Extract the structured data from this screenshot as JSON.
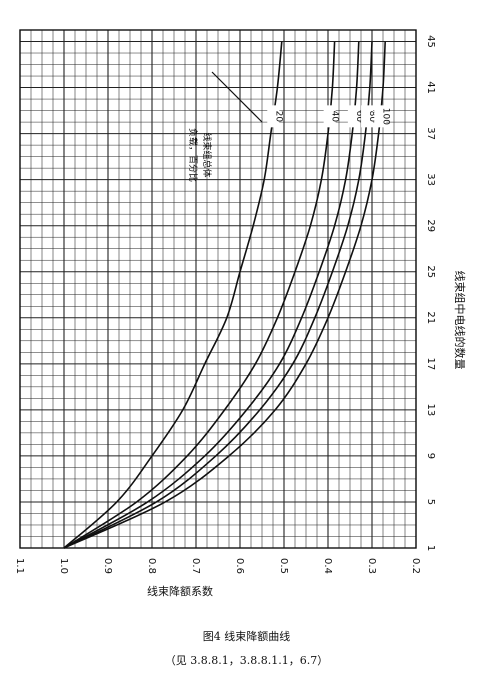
{
  "chart_data": {
    "type": "line",
    "x_axis": {
      "title": "线束组中电线的数量",
      "ticks": [
        1,
        5,
        9,
        13,
        17,
        21,
        25,
        29,
        33,
        37,
        41,
        45
      ],
      "range": [
        1,
        46
      ]
    },
    "y_axis": {
      "title": "线束降额系数",
      "ticks": [
        "1.1",
        "1.0",
        "0.9",
        "0.8",
        "0.7",
        "0.6",
        "0.5",
        "0.4",
        "0.3",
        "0.2"
      ],
      "range": [
        0.2,
        1.1
      ]
    },
    "grid": true,
    "series_group_label": "线束组总体负载，百分比",
    "series": [
      {
        "name": "20",
        "x": [
          1,
          5,
          9,
          13,
          17,
          21,
          25,
          29,
          33,
          37,
          41,
          45
        ],
        "y": [
          1.0,
          0.88,
          0.8,
          0.73,
          0.68,
          0.63,
          0.6,
          0.57,
          0.545,
          0.53,
          0.515,
          0.505
        ]
      },
      {
        "name": "40",
        "x": [
          1,
          5,
          9,
          13,
          17,
          21,
          25,
          29,
          33,
          37,
          41,
          45
        ],
        "y": [
          1.0,
          0.835,
          0.72,
          0.635,
          0.565,
          0.515,
          0.475,
          0.44,
          0.415,
          0.4,
          0.39,
          0.385
        ]
      },
      {
        "name": "60",
        "x": [
          1,
          5,
          9,
          13,
          17,
          21,
          25,
          29,
          33,
          37,
          41,
          45
        ],
        "y": [
          1.0,
          0.81,
          0.68,
          0.585,
          0.51,
          0.46,
          0.42,
          0.385,
          0.36,
          0.345,
          0.335,
          0.33
        ]
      },
      {
        "name": "80",
        "x": [
          1,
          5,
          9,
          13,
          17,
          21,
          25,
          29,
          33,
          37,
          41,
          45
        ],
        "y": [
          1.0,
          0.79,
          0.655,
          0.555,
          0.48,
          0.43,
          0.39,
          0.355,
          0.33,
          0.315,
          0.305,
          0.3
        ]
      },
      {
        "name": "100",
        "x": [
          1,
          5,
          9,
          13,
          17,
          21,
          25,
          29,
          33,
          37,
          41,
          45
        ],
        "y": [
          1.0,
          0.77,
          0.625,
          0.52,
          0.45,
          0.4,
          0.36,
          0.325,
          0.3,
          0.285,
          0.275,
          0.27
        ]
      }
    ]
  },
  "figure": {
    "caption": "图4 线束降额曲线",
    "ref": "（见 3.8.8.1，3.8.8.1.1，6.7）"
  }
}
